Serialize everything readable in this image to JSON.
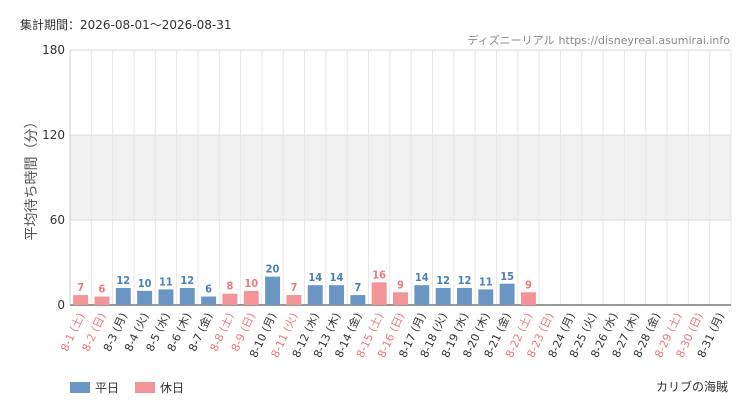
{
  "header": {
    "period_label": "集計期間：",
    "period_range": "2026-08-01～2026-08-31",
    "source_name": "ディズニーリアル",
    "source_url": "https://disneyreal.asumirai.info"
  },
  "footer": {
    "attraction": "カリブの海賊"
  },
  "colors": {
    "weekday": "#6b96c4",
    "holiday": "#f29498",
    "weekday_text": "#4a7fb8",
    "holiday_text": "#f0787f",
    "band": "#f1f1f1"
  },
  "chart_data": {
    "type": "bar",
    "ylabel": "平均待ち時間（分）",
    "ylim": [
      0,
      180
    ],
    "yticks": [
      0,
      60,
      120,
      180
    ],
    "shaded_band": [
      60,
      120
    ],
    "grid": true,
    "legend": [
      {
        "name": "平日",
        "key": "weekday"
      },
      {
        "name": "休日",
        "key": "holiday"
      }
    ],
    "categories": [
      "8-1 (土)",
      "8-2 (日)",
      "8-3 (月)",
      "8-4 (火)",
      "8-5 (水)",
      "8-6 (木)",
      "8-7 (金)",
      "8-8 (土)",
      "8-9 (日)",
      "8-10 (月)",
      "8-11 (火)",
      "8-12 (水)",
      "8-13 (木)",
      "8-14 (金)",
      "8-15 (土)",
      "8-16 (日)",
      "8-17 (月)",
      "8-18 (火)",
      "8-19 (水)",
      "8-20 (木)",
      "8-21 (金)",
      "8-22 (土)",
      "8-23 (日)",
      "8-24 (月)",
      "8-25 (火)",
      "8-26 (水)",
      "8-27 (木)",
      "8-28 (金)",
      "8-29 (土)",
      "8-30 (日)",
      "8-31 (月)"
    ],
    "day_types": [
      "holiday",
      "holiday",
      "weekday",
      "weekday",
      "weekday",
      "weekday",
      "weekday",
      "holiday",
      "holiday",
      "weekday",
      "holiday",
      "weekday",
      "weekday",
      "weekday",
      "holiday",
      "holiday",
      "weekday",
      "weekday",
      "weekday",
      "weekday",
      "weekday",
      "holiday",
      "holiday",
      "weekday",
      "weekday",
      "weekday",
      "weekday",
      "weekday",
      "holiday",
      "holiday",
      "weekday"
    ],
    "values": [
      7,
      6,
      12,
      10,
      11,
      12,
      6,
      8,
      10,
      20,
      7,
      14,
      14,
      7,
      16,
      9,
      14,
      12,
      12,
      11,
      15,
      9,
      null,
      null,
      null,
      null,
      null,
      null,
      null,
      null,
      null
    ]
  }
}
